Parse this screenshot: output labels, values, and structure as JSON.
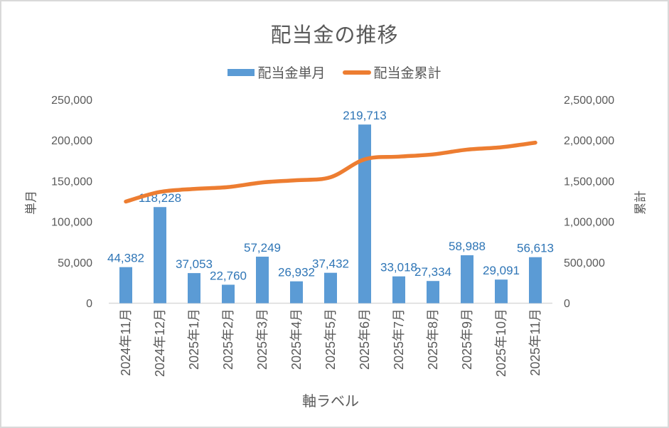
{
  "chart_data": {
    "type": "combo",
    "title": "配当金の推移",
    "x_axis_title": "軸ラベル",
    "legend_position": "top",
    "grid": false,
    "categories": [
      "2024年11月",
      "2024年12月",
      "2025年1月",
      "2025年2月",
      "2025年3月",
      "2025年4月",
      "2025年5月",
      "2025年6月",
      "2025年7月",
      "2025年8月",
      "2025年9月",
      "2025年10月",
      "2025年11月"
    ],
    "series": [
      {
        "name": "配当金単月",
        "type": "bar",
        "axis": "left",
        "color": "#5B9BD5",
        "values": [
          44382,
          118228,
          37053,
          22760,
          57249,
          26932,
          37432,
          219713,
          33018,
          27334,
          58988,
          29091,
          56613
        ],
        "data_labels": [
          "44,382",
          "118,228",
          "37,053",
          "22,760",
          "57,249",
          "26,932",
          "37,432",
          "219,713",
          "33,018",
          "27,334",
          "58,988",
          "29,091",
          "56,613"
        ],
        "data_label_color": "#2E75B6"
      },
      {
        "name": "配当金累計",
        "type": "line",
        "axis": "right",
        "color": "#ED7D31",
        "smooth": true,
        "values": [
          1250000,
          1368228,
          1405281,
          1428041,
          1485290,
          1512222,
          1549654,
          1769367,
          1802385,
          1829719,
          1888707,
          1917798,
          1974411
        ]
      }
    ],
    "left_axis": {
      "title": "単月",
      "min": 0,
      "max": 250000,
      "step": 50000,
      "ticks": [
        "0",
        "50,000",
        "100,000",
        "150,000",
        "200,000",
        "250,000"
      ]
    },
    "right_axis": {
      "title": "累計",
      "min": 0,
      "max": 2500000,
      "step": 500000,
      "ticks": [
        "0",
        "500,000",
        "1,000,000",
        "1,500,000",
        "2,000,000",
        "2,500,000"
      ]
    },
    "colors": {
      "text": "#595959",
      "axis_line": "#D9D9D9",
      "frame_border": "#D9D9D9"
    }
  }
}
